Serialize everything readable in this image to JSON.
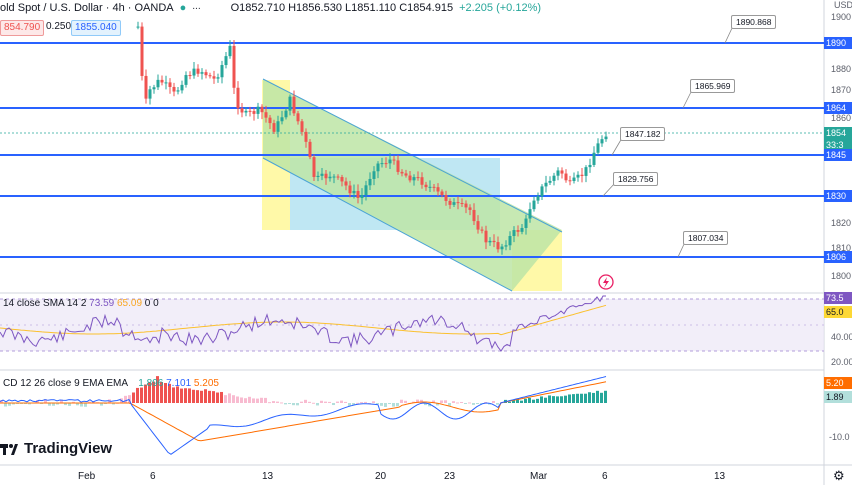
{
  "header": {
    "symbol": "old Spot / U.S. Dollar · 4h · OANDA",
    "ohlc": "O1852.710 H1856.530 L1851.110 C1854.915",
    "change": "+2.205 (+0.12%)"
  },
  "trade": {
    "sell": "854.790",
    "spread": "0.250",
    "buy": "1855.040"
  },
  "price_axis": {
    "currency": "USD",
    "ticks": [
      "1900",
      "1890",
      "1880",
      "1870",
      "1864",
      "1860",
      "1854",
      "1850",
      "1845",
      "1840",
      "1830",
      "1820",
      "1810",
      "1806",
      "1800"
    ]
  },
  "price_tags": [
    {
      "text": "1890",
      "color": "#2962ff"
    },
    {
      "text": "1864",
      "color": "#2962ff"
    },
    {
      "text": "1854",
      "color": "#26a69a"
    },
    {
      "text": "33:3",
      "color": "#26a69a"
    },
    {
      "text": "1845",
      "color": "#2962ff"
    },
    {
      "text": "1830",
      "color": "#2962ff"
    },
    {
      "text": "1806",
      "color": "#2962ff"
    }
  ],
  "callouts": [
    "1890.868",
    "1865.969",
    "1847.182",
    "1829.756",
    "1807.034"
  ],
  "rsi": {
    "label": "14 close SMA 14 2",
    "v1": "73.59",
    "v2": "65.09",
    "v3": "0",
    "v4": "0",
    "axis": [
      "73.5",
      "65.0",
      "40.00",
      "20.00"
    ]
  },
  "macd": {
    "label": "CD 12 26 close 9 EMA EMA",
    "v1": "1.896",
    "v2": "7.101",
    "v3": "5.205",
    "axis": [
      "5.20",
      "1.89",
      "-10.0"
    ]
  },
  "time_axis": [
    "Feb",
    "6",
    "13",
    "20",
    "23",
    "Mar",
    "6",
    "13"
  ],
  "logo_text": "TradingView",
  "colors": {
    "up": "#26a69a",
    "down": "#ef5350",
    "level": "#2962ff",
    "rsi": "#7e57c2",
    "macd": "#2962ff",
    "signal": "#ff6d00"
  },
  "icons": [
    "lightning-icon",
    "tradingview-logo-icon",
    "settings-icon"
  ]
}
